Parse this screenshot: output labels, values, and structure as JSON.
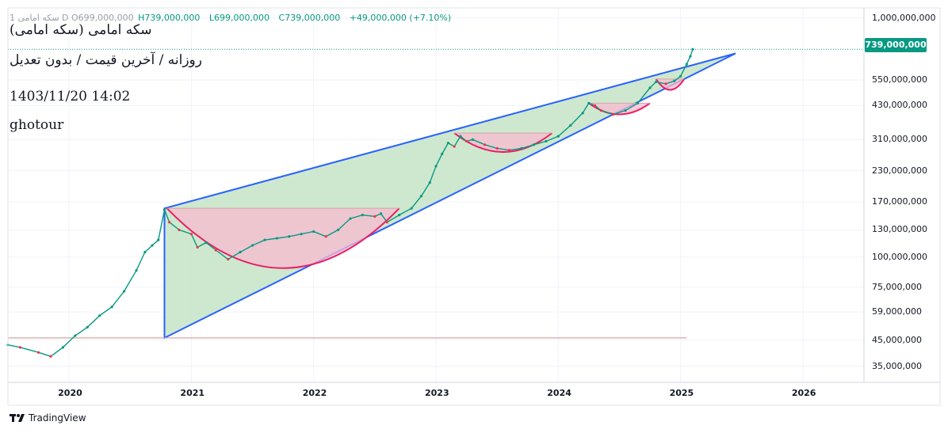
{
  "header": {
    "ohlc_label": "سکه امامی 1 D",
    "open": "O699,000,000",
    "high": "H739,000,000",
    "low": "L699,000,000",
    "close": "C739,000,000",
    "change": "+49,000,000 (+7.10%)",
    "colors": {
      "up": "#089981",
      "down": "#f23645"
    }
  },
  "overlay_text": {
    "line1": "(سکه امامی (سکه امامی",
    "line2": "روزانه / آخرین قیمت / بدون تعدیل",
    "line3": "1403/11/20 14:02",
    "line4": "ghotour"
  },
  "price_badge": "739,000,000",
  "footer": {
    "brand": "TradingView"
  },
  "chart_data": {
    "type": "line",
    "title": "سکه امامی",
    "scale": "log",
    "x_range": [
      2019.5,
      2026.5
    ],
    "ylim": [
      30000000,
      1100000000
    ],
    "y_ticks": [
      {
        "value": 1000000000,
        "label": "1,000,000,000"
      },
      {
        "value": 550000000,
        "label": "550,000,000"
      },
      {
        "value": 430000000,
        "label": "430,000,000"
      },
      {
        "value": 310000000,
        "label": "310,000,000"
      },
      {
        "value": 230000000,
        "label": "230,000,000"
      },
      {
        "value": 170000000,
        "label": "170,000,000"
      },
      {
        "value": 130000000,
        "label": "130,000,000"
      },
      {
        "value": 100000000,
        "label": "100,000,000"
      },
      {
        "value": 75000000,
        "label": "75,000,000"
      },
      {
        "value": 59000000,
        "label": "59,000,000"
      },
      {
        "value": 45000000,
        "label": "45,000,000"
      },
      {
        "value": 35000000,
        "label": "35,000,000"
      }
    ],
    "x_ticks": [
      {
        "value": 2020,
        "label": "2020"
      },
      {
        "value": 2021,
        "label": "2021"
      },
      {
        "value": 2022,
        "label": "2022"
      },
      {
        "value": 2023,
        "label": "2023"
      },
      {
        "value": 2024,
        "label": "2024"
      },
      {
        "value": 2025,
        "label": "2025"
      },
      {
        "value": 2026,
        "label": "2026"
      }
    ],
    "series": [
      {
        "name": "close",
        "points": [
          [
            2019.5,
            43000000
          ],
          [
            2019.6,
            42000000
          ],
          [
            2019.75,
            40000000
          ],
          [
            2019.85,
            38500000
          ],
          [
            2019.95,
            42000000
          ],
          [
            2020.05,
            47000000
          ],
          [
            2020.15,
            51000000
          ],
          [
            2020.25,
            57000000
          ],
          [
            2020.35,
            62000000
          ],
          [
            2020.45,
            72000000
          ],
          [
            2020.55,
            88000000
          ],
          [
            2020.62,
            105000000
          ],
          [
            2020.68,
            112000000
          ],
          [
            2020.73,
            118000000
          ],
          [
            2020.78,
            158000000
          ],
          [
            2020.82,
            140000000
          ],
          [
            2020.9,
            130000000
          ],
          [
            2021.0,
            125000000
          ],
          [
            2021.05,
            110000000
          ],
          [
            2021.12,
            115000000
          ],
          [
            2021.2,
            107000000
          ],
          [
            2021.3,
            98000000
          ],
          [
            2021.4,
            105000000
          ],
          [
            2021.5,
            112000000
          ],
          [
            2021.6,
            118000000
          ],
          [
            2021.7,
            120000000
          ],
          [
            2021.8,
            122000000
          ],
          [
            2021.9,
            125000000
          ],
          [
            2022.0,
            128000000
          ],
          [
            2022.1,
            122000000
          ],
          [
            2022.2,
            130000000
          ],
          [
            2022.3,
            145000000
          ],
          [
            2022.4,
            150000000
          ],
          [
            2022.5,
            148000000
          ],
          [
            2022.55,
            152000000
          ],
          [
            2022.6,
            140000000
          ],
          [
            2022.7,
            150000000
          ],
          [
            2022.8,
            160000000
          ],
          [
            2022.88,
            180000000
          ],
          [
            2022.95,
            205000000
          ],
          [
            2023.0,
            240000000
          ],
          [
            2023.05,
            270000000
          ],
          [
            2023.1,
            300000000
          ],
          [
            2023.15,
            290000000
          ],
          [
            2023.2,
            320000000
          ],
          [
            2023.25,
            305000000
          ],
          [
            2023.3,
            310000000
          ],
          [
            2023.4,
            295000000
          ],
          [
            2023.5,
            285000000
          ],
          [
            2023.6,
            280000000
          ],
          [
            2023.7,
            285000000
          ],
          [
            2023.8,
            295000000
          ],
          [
            2023.9,
            305000000
          ],
          [
            2024.0,
            320000000
          ],
          [
            2024.1,
            355000000
          ],
          [
            2024.2,
            400000000
          ],
          [
            2024.25,
            440000000
          ],
          [
            2024.3,
            430000000
          ],
          [
            2024.35,
            410000000
          ],
          [
            2024.45,
            395000000
          ],
          [
            2024.55,
            410000000
          ],
          [
            2024.65,
            440000000
          ],
          [
            2024.75,
            510000000
          ],
          [
            2024.8,
            540000000
          ],
          [
            2024.88,
            530000000
          ],
          [
            2024.95,
            545000000
          ],
          [
            2025.0,
            570000000
          ],
          [
            2025.05,
            640000000
          ],
          [
            2025.08,
            690000000
          ],
          [
            2025.1,
            739000000
          ]
        ]
      }
    ],
    "annotations": {
      "triangle_pattern": {
        "points": [
          [
            2020.78,
            160000000
          ],
          [
            2025.45,
            710000000
          ],
          [
            2020.78,
            46000000
          ]
        ],
        "fill": "#c8e6c9",
        "stroke": "#2962ff"
      },
      "horizontal_line": {
        "y": 46000000,
        "x_from": 2019.5,
        "x_to": 2025.05,
        "color": "#d4a5a5"
      },
      "last_price_line": {
        "y": 739000000,
        "color": "#089981"
      },
      "cup_patterns": [
        {
          "x_from": 2020.8,
          "x_to": 2022.7,
          "rim": 160000000,
          "bottom": 90000000
        },
        {
          "x_from": 2023.15,
          "x_to": 2023.95,
          "rim": 330000000,
          "bottom": 275000000
        },
        {
          "x_from": 2024.25,
          "x_to": 2024.75,
          "rim": 440000000,
          "bottom": 395000000
        },
        {
          "x_from": 2024.8,
          "x_to": 2025.03,
          "rim": 555000000,
          "bottom": 500000000
        }
      ]
    }
  }
}
